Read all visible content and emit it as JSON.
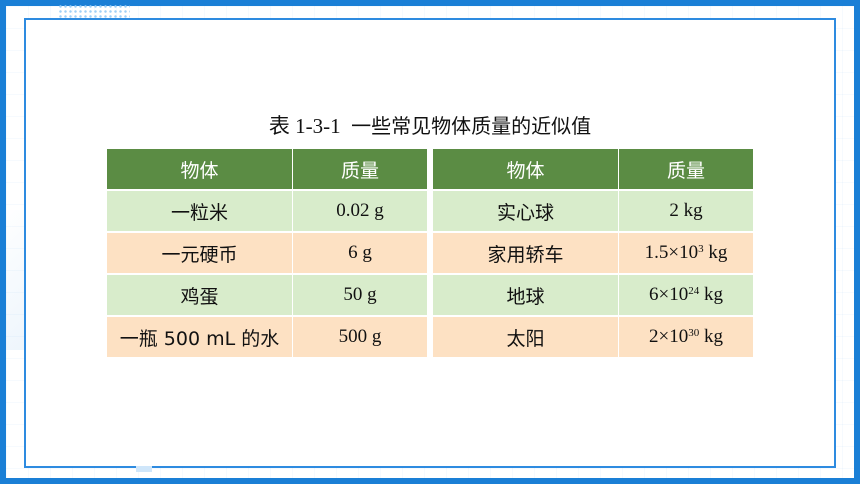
{
  "caption": {
    "number": "表 1-3-1",
    "title": "一些常见物体质量的近似值"
  },
  "table_left": {
    "headers": [
      "物体",
      "质量"
    ],
    "rows": [
      {
        "object": "一粒米",
        "mass": "0.02 g"
      },
      {
        "object": "一元硬币",
        "mass": "6 g"
      },
      {
        "object": "鸡蛋",
        "mass": "50 g"
      },
      {
        "object": "一瓶 500 mL 的水",
        "mass": "500 g"
      }
    ]
  },
  "table_right": {
    "headers": [
      "物体",
      "质量"
    ],
    "rows": [
      {
        "object": "实心球",
        "mass_base": "2 kg",
        "mass_exp": "",
        "mass_unit": ""
      },
      {
        "object": "家用轿车",
        "mass_base": "1.5×10",
        "mass_exp": "3",
        "mass_unit": " kg"
      },
      {
        "object": "地球",
        "mass_base": "6×10",
        "mass_exp": "24",
        "mass_unit": " kg"
      },
      {
        "object": "太阳",
        "mass_base": "2×10",
        "mass_exp": "30",
        "mass_unit": " kg"
      }
    ]
  },
  "colors": {
    "frame_blue": "#1a7fd6",
    "header_green": "#5b8c44",
    "row_green": "#d8eccb",
    "row_orange": "#fde1c3"
  }
}
